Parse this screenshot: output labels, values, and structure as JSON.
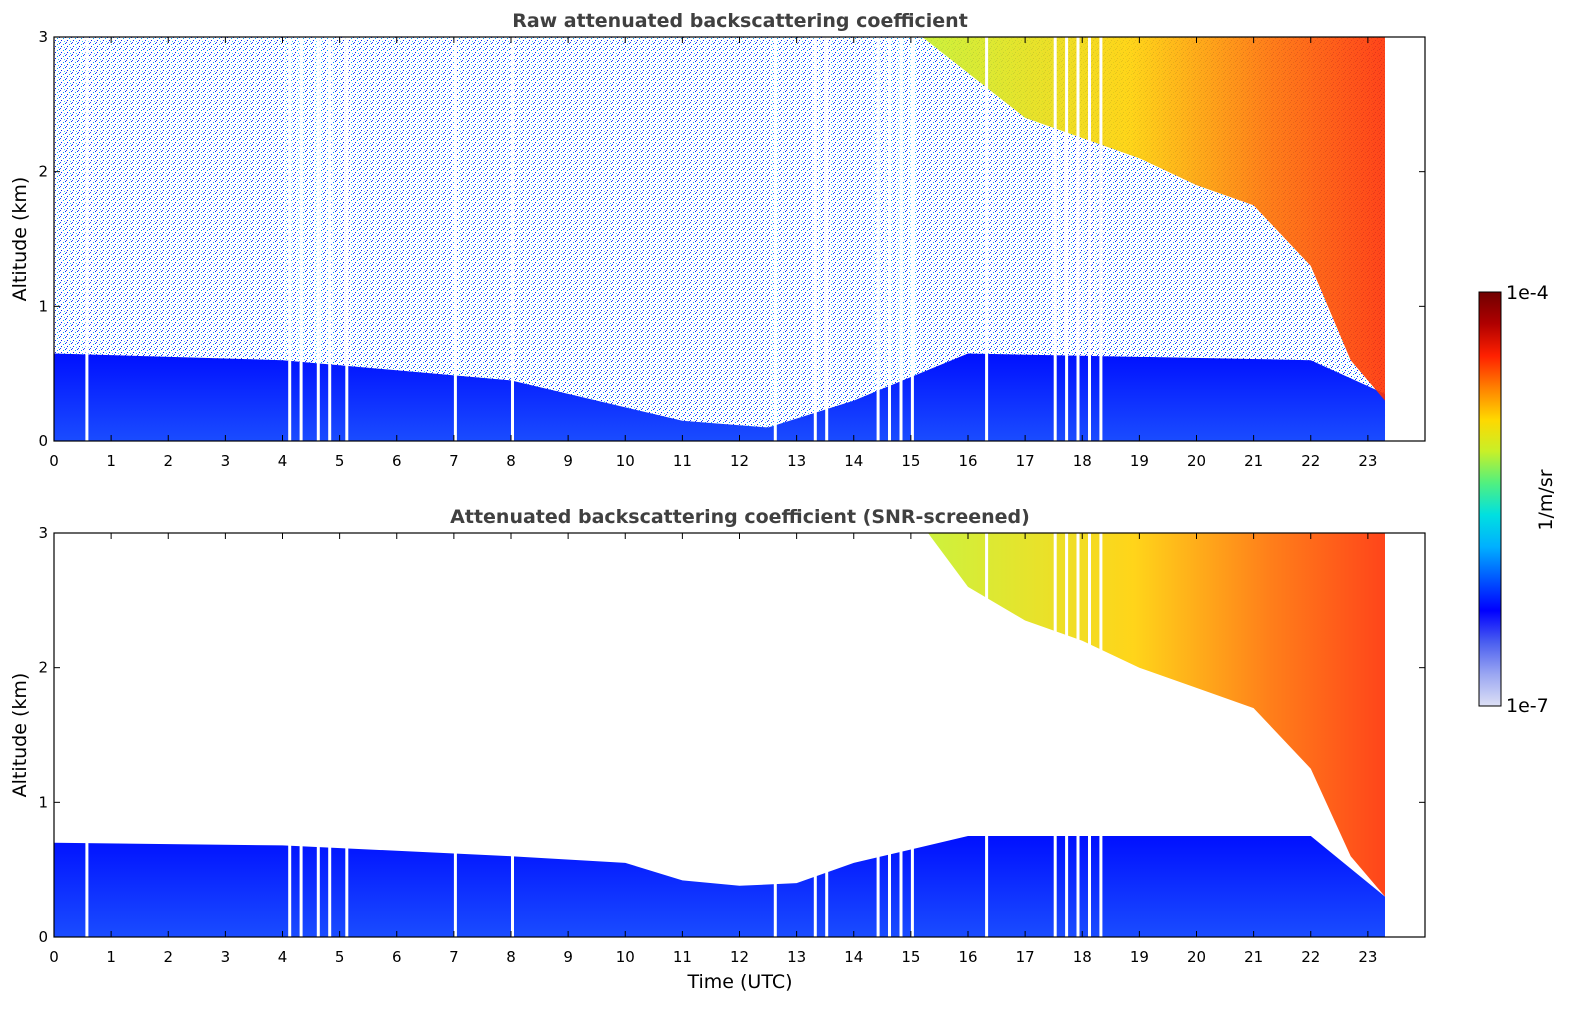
{
  "chart_data": [
    {
      "type": "heatmap",
      "title": "Raw attenuated backscattering coefficient",
      "ylabel": "Altitude (km)",
      "xlabel": "",
      "xlim": [
        0,
        24
      ],
      "ylim": [
        0,
        3
      ],
      "xticks": [
        "0",
        "1",
        "2",
        "3",
        "4",
        "5",
        "6",
        "7",
        "8",
        "9",
        "10",
        "11",
        "12",
        "13",
        "14",
        "15",
        "16",
        "17",
        "18",
        "19",
        "20",
        "21",
        "22",
        "23"
      ],
      "yticks": [
        "0",
        "1",
        "2",
        "3"
      ],
      "data_end_time": 23.3,
      "boundary_layer_top_km": [
        [
          0,
          0.65
        ],
        [
          4,
          0.6
        ],
        [
          8,
          0.45
        ],
        [
          11,
          0.15
        ],
        [
          12.5,
          0.1
        ],
        [
          14,
          0.3
        ],
        [
          16,
          0.65
        ],
        [
          22,
          0.6
        ],
        [
          23.3,
          0.35
        ]
      ],
      "cloud_base_km": [
        [
          15.2,
          3.0
        ],
        [
          17,
          2.4
        ],
        [
          19,
          2.1
        ],
        [
          20,
          1.9
        ],
        [
          21,
          1.75
        ],
        [
          22,
          1.3
        ],
        [
          22.7,
          0.6
        ],
        [
          23.3,
          0.3
        ]
      ],
      "data_gaps_utc": [
        0.55,
        4.1,
        4.3,
        4.6,
        4.8,
        5.1,
        7.0,
        8.0,
        12.6,
        13.3,
        13.5,
        14.4,
        14.6,
        14.8,
        15.0,
        16.3,
        17.5,
        17.7,
        17.9,
        18.1,
        18.3
      ]
    },
    {
      "type": "heatmap",
      "title": "Attenuated backscattering coefficient (SNR-screened)",
      "ylabel": "Altitude (km)",
      "xlabel": "Time (UTC)",
      "xlim": [
        0,
        24
      ],
      "ylim": [
        0,
        3
      ],
      "xticks": [
        "0",
        "1",
        "2",
        "3",
        "4",
        "5",
        "6",
        "7",
        "8",
        "9",
        "10",
        "11",
        "12",
        "13",
        "14",
        "15",
        "16",
        "17",
        "18",
        "19",
        "20",
        "21",
        "22",
        "23"
      ],
      "yticks": [
        "0",
        "1",
        "2",
        "3"
      ],
      "data_end_time": 23.3,
      "boundary_layer_top_km": [
        [
          0,
          0.7
        ],
        [
          4,
          0.68
        ],
        [
          8,
          0.6
        ],
        [
          10,
          0.55
        ],
        [
          11,
          0.42
        ],
        [
          12,
          0.38
        ],
        [
          13,
          0.4
        ],
        [
          14,
          0.55
        ],
        [
          15,
          0.65
        ],
        [
          16,
          0.75
        ],
        [
          22,
          0.75
        ],
        [
          23.3,
          0.3
        ]
      ],
      "cloud_base_km": [
        [
          15.3,
          3.0
        ],
        [
          16,
          2.6
        ],
        [
          17,
          2.35
        ],
        [
          18,
          2.2
        ],
        [
          19,
          2.0
        ],
        [
          20,
          1.85
        ],
        [
          21,
          1.7
        ],
        [
          22,
          1.25
        ],
        [
          22.7,
          0.6
        ],
        [
          23.3,
          0.3
        ]
      ],
      "data_gaps_utc": [
        0.55,
        4.1,
        4.3,
        4.6,
        4.8,
        5.1,
        7.0,
        8.0,
        12.6,
        13.3,
        13.5,
        14.4,
        14.6,
        14.8,
        15.0,
        16.3,
        17.5,
        17.7,
        17.9,
        18.1,
        18.3
      ]
    }
  ],
  "colorbar": {
    "label": "1/m/sr",
    "max_label": "1e-4",
    "min_label": "1e-7",
    "colors": [
      "#dde0f5",
      "#9aa6f2",
      "#4a5ef0",
      "#0000ff",
      "#0058ff",
      "#00b0ff",
      "#00e0e0",
      "#50f080",
      "#c8f028",
      "#ffd800",
      "#ff8000",
      "#ff2000",
      "#b00000",
      "#700000"
    ]
  }
}
